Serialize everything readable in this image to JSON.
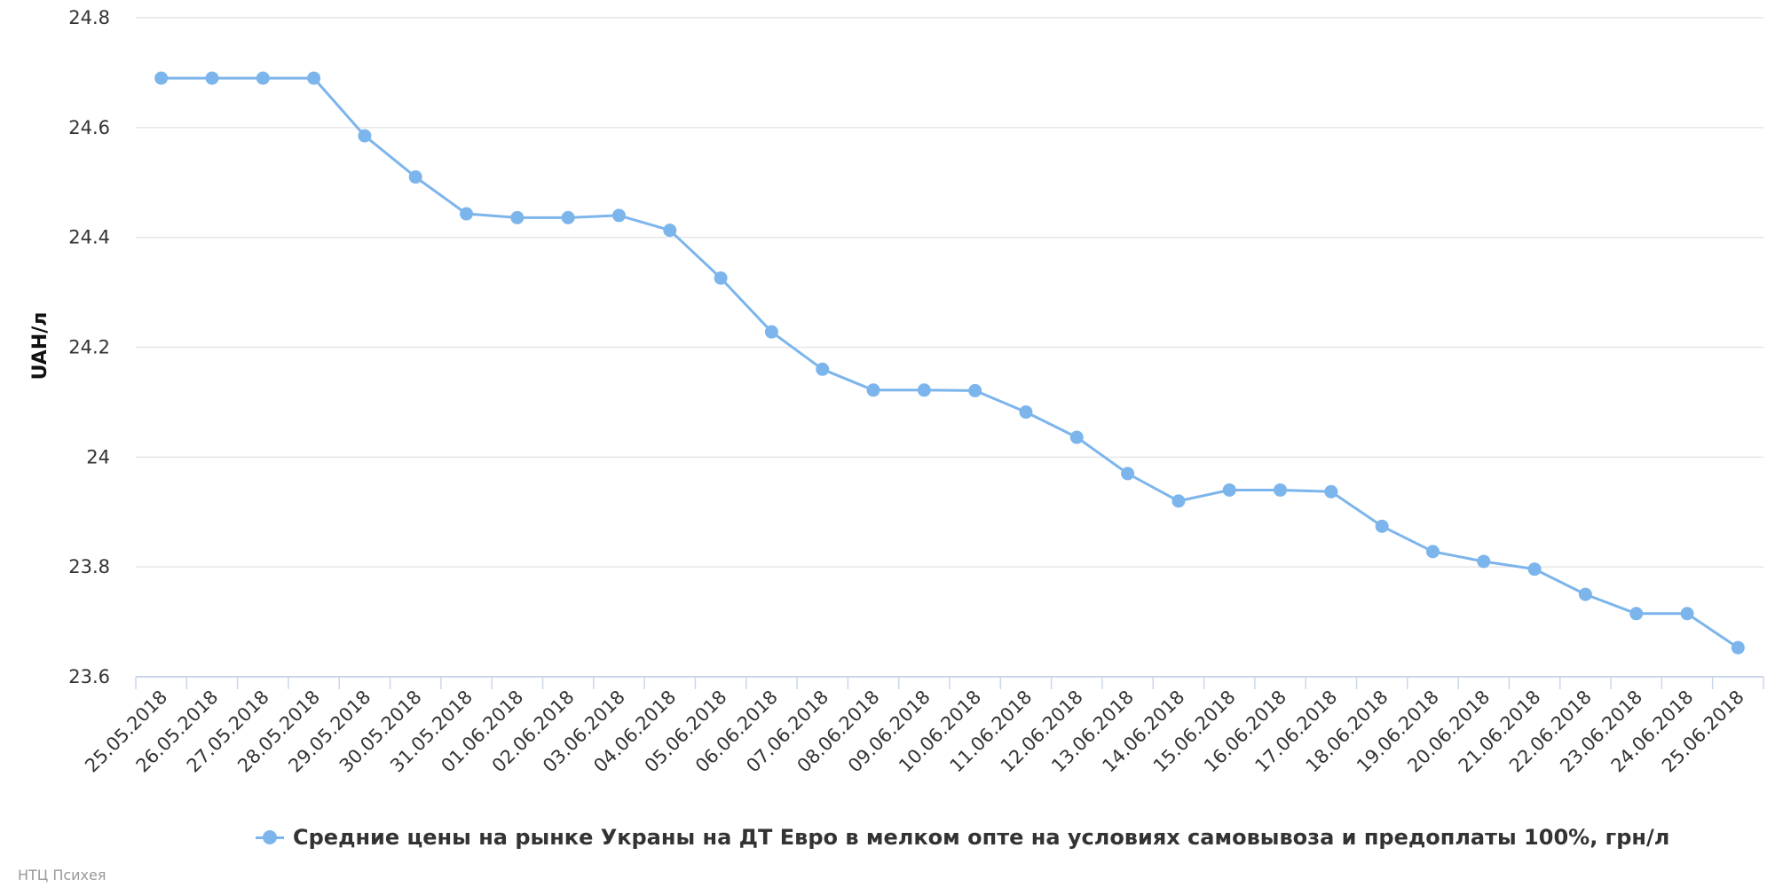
{
  "chart_data": {
    "type": "line",
    "ylabel": "UAH/л",
    "xlabel": "",
    "ylim": [
      23.6,
      24.8
    ],
    "yticks": [
      "23.6",
      "23.8",
      "24",
      "24.2",
      "24.4",
      "24.6",
      "24.8"
    ],
    "grid": true,
    "legend_placement": "bottom-center",
    "x": [
      "25.05.2018",
      "26.05.2018",
      "27.05.2018",
      "28.05.2018",
      "29.05.2018",
      "30.05.2018",
      "31.05.2018",
      "01.06.2018",
      "02.06.2018",
      "03.06.2018",
      "04.06.2018",
      "05.06.2018",
      "06.06.2018",
      "07.06.2018",
      "08.06.2018",
      "09.06.2018",
      "10.06.2018",
      "11.06.2018",
      "12.06.2018",
      "13.06.2018",
      "14.06.2018",
      "15.06.2018",
      "16.06.2018",
      "17.06.2018",
      "18.06.2018",
      "19.06.2018",
      "20.06.2018",
      "21.06.2018",
      "22.06.2018",
      "23.06.2018",
      "24.06.2018",
      "25.06.2018"
    ],
    "series": [
      {
        "name": "Средние цены на рынке Украны на ДТ Евро в мелком опте на условиях самовывоза и предоплаты 100%, грн/л",
        "color": "#7cb5ec",
        "values": [
          24.69,
          24.69,
          24.69,
          24.69,
          24.585,
          24.51,
          24.443,
          24.436,
          24.436,
          24.44,
          24.413,
          24.326,
          24.228,
          24.16,
          24.122,
          24.122,
          24.121,
          24.082,
          24.036,
          23.97,
          23.92,
          23.94,
          23.94,
          23.937,
          23.874,
          23.828,
          23.81,
          23.796,
          23.75,
          23.715,
          23.715,
          23.653
        ]
      }
    ]
  },
  "credits": "НТЦ Психея"
}
